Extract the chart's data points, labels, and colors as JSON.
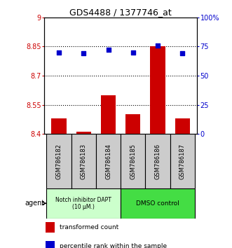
{
  "title": "GDS4488 / 1377746_at",
  "samples": [
    "GSM786182",
    "GSM786183",
    "GSM786184",
    "GSM786185",
    "GSM786186",
    "GSM786187"
  ],
  "bar_values": [
    8.48,
    8.41,
    8.6,
    8.5,
    8.85,
    8.48
  ],
  "percentile_values": [
    70,
    69,
    72,
    70,
    76,
    69
  ],
  "bar_color": "#cc0000",
  "dot_color": "#0000cc",
  "ylim_left": [
    8.4,
    9.0
  ],
  "ylim_right": [
    0,
    100
  ],
  "yticks_left": [
    8.4,
    8.55,
    8.7,
    8.85,
    9.0
  ],
  "yticks_right": [
    0,
    25,
    50,
    75,
    100
  ],
  "ytick_labels_left": [
    "8.4",
    "8.55",
    "8.7",
    "8.85",
    "9"
  ],
  "ytick_labels_right": [
    "0",
    "25",
    "50",
    "75",
    "100%"
  ],
  "hline_values": [
    8.55,
    8.7,
    8.85
  ],
  "group1_label": "Notch inhibitor DAPT\n(10 μM.)",
  "group2_label": "DMSO control",
  "group1_color": "#ccffcc",
  "group2_color": "#44dd44",
  "legend_bar_label": "transformed count",
  "legend_dot_label": "percentile rank within the sample",
  "bar_bottom": 8.4,
  "bar_width": 0.6,
  "figsize": [
    3.31,
    3.54
  ],
  "dpi": 100
}
